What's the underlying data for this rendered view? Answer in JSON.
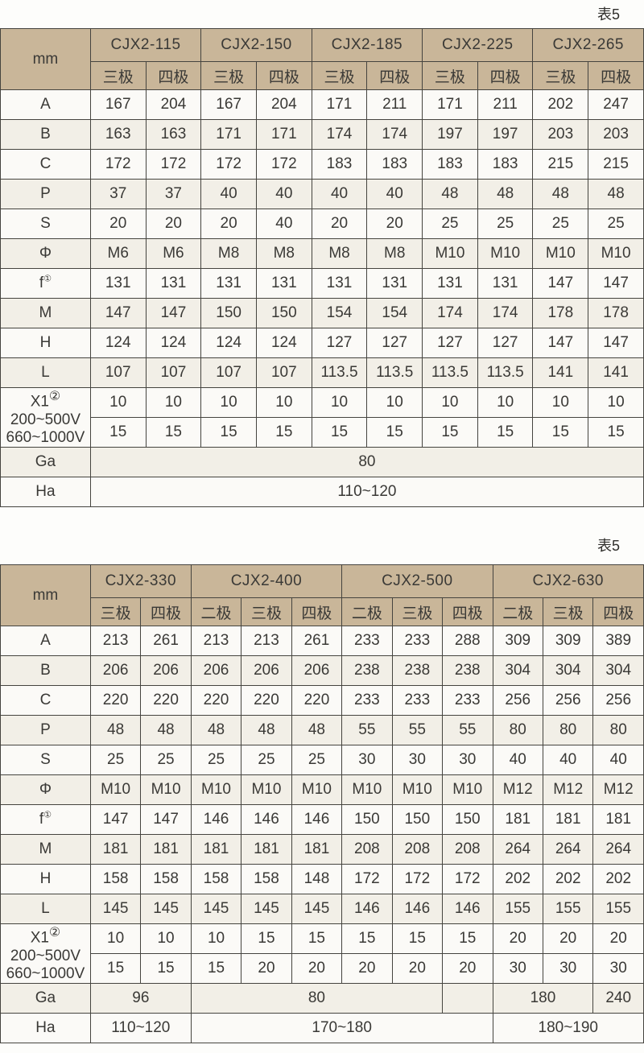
{
  "colors": {
    "header_bg": "#c9b699",
    "row_shaded": "#f2efe7",
    "row_plain": "#fbfaf7",
    "grid_dark": "#45443f",
    "grid_light": "#e6dfd0",
    "text": "#3a3936",
    "page_bg": "#fdfdfb"
  },
  "tables": [
    {
      "caption": "表5",
      "corner_label": "mm",
      "groups": [
        {
          "name": "CJX2-115",
          "poles": [
            "三极",
            "四极"
          ]
        },
        {
          "name": "CJX2-150",
          "poles": [
            "三极",
            "四极"
          ]
        },
        {
          "name": "CJX2-185",
          "poles": [
            "三极",
            "四极"
          ]
        },
        {
          "name": "CJX2-225",
          "poles": [
            "三极",
            "四极"
          ]
        },
        {
          "name": "CJX2-265",
          "poles": [
            "三极",
            "四极"
          ]
        }
      ],
      "rows": [
        {
          "label": "A",
          "values": [
            "167",
            "204",
            "167",
            "204",
            "171",
            "211",
            "171",
            "211",
            "202",
            "247"
          ]
        },
        {
          "label": "B",
          "values": [
            "163",
            "163",
            "171",
            "171",
            "174",
            "174",
            "197",
            "197",
            "203",
            "203"
          ]
        },
        {
          "label": "C",
          "values": [
            "172",
            "172",
            "172",
            "172",
            "183",
            "183",
            "183",
            "183",
            "215",
            "215"
          ]
        },
        {
          "label": "P",
          "values": [
            "37",
            "37",
            "40",
            "40",
            "40",
            "40",
            "48",
            "48",
            "48",
            "48"
          ]
        },
        {
          "label": "S",
          "values": [
            "20",
            "20",
            "20",
            "40",
            "20",
            "20",
            "25",
            "25",
            "25",
            "25"
          ]
        },
        {
          "label": "Φ",
          "values": [
            "M6",
            "M6",
            "M8",
            "M8",
            "M8",
            "M8",
            "M10",
            "M10",
            "M10",
            "M10"
          ]
        },
        {
          "label": "f①",
          "values": [
            "131",
            "131",
            "131",
            "131",
            "131",
            "131",
            "131",
            "131",
            "147",
            "147"
          ]
        },
        {
          "label": "M",
          "values": [
            "147",
            "147",
            "150",
            "150",
            "154",
            "154",
            "174",
            "174",
            "178",
            "178"
          ]
        },
        {
          "label": "H",
          "values": [
            "124",
            "124",
            "124",
            "124",
            "127",
            "127",
            "127",
            "127",
            "147",
            "147"
          ]
        },
        {
          "label": "L",
          "values": [
            "107",
            "107",
            "107",
            "107",
            "113.5",
            "113.5",
            "113.5",
            "113.5",
            "141",
            "141"
          ]
        }
      ],
      "x1_block": {
        "label_lines": [
          "X1②",
          "200~500V",
          "660~1000V"
        ],
        "rows": [
          [
            "10",
            "10",
            "10",
            "10",
            "10",
            "10",
            "10",
            "10",
            "10",
            "10"
          ],
          [
            "15",
            "15",
            "15",
            "15",
            "15",
            "15",
            "15",
            "15",
            "15",
            "15"
          ]
        ]
      },
      "footer_rows": [
        {
          "label": "Ga",
          "cells": [
            {
              "text": "80",
              "span": 10
            }
          ]
        },
        {
          "label": "Ha",
          "cells": [
            {
              "text": "110~120",
              "span": 10
            }
          ]
        }
      ]
    },
    {
      "caption": "表5",
      "corner_label": "mm",
      "groups": [
        {
          "name": "CJX2-330",
          "poles": [
            "三极",
            "四极"
          ]
        },
        {
          "name": "CJX2-400",
          "poles": [
            "二极",
            "三极",
            "四极"
          ]
        },
        {
          "name": "CJX2-500",
          "poles": [
            "二极",
            "三极",
            "四极"
          ]
        },
        {
          "name": "CJX2-630",
          "poles": [
            "二极",
            "三极",
            "四极"
          ]
        }
      ],
      "rows": [
        {
          "label": "A",
          "values": [
            "213",
            "261",
            "213",
            "213",
            "261",
            "233",
            "233",
            "288",
            "309",
            "309",
            "389"
          ]
        },
        {
          "label": "B",
          "values": [
            "206",
            "206",
            "206",
            "206",
            "206",
            "238",
            "238",
            "238",
            "304",
            "304",
            "304"
          ]
        },
        {
          "label": "C",
          "values": [
            "220",
            "220",
            "220",
            "220",
            "220",
            "233",
            "233",
            "233",
            "256",
            "256",
            "256"
          ]
        },
        {
          "label": "P",
          "values": [
            "48",
            "48",
            "48",
            "48",
            "48",
            "55",
            "55",
            "55",
            "80",
            "80",
            "80"
          ]
        },
        {
          "label": "S",
          "values": [
            "25",
            "25",
            "25",
            "25",
            "25",
            "30",
            "30",
            "30",
            "40",
            "40",
            "40"
          ]
        },
        {
          "label": "Φ",
          "values": [
            "M10",
            "M10",
            "M10",
            "M10",
            "M10",
            "M10",
            "M10",
            "M10",
            "M12",
            "M12",
            "M12"
          ]
        },
        {
          "label": "f①",
          "values": [
            "147",
            "147",
            "146",
            "146",
            "146",
            "150",
            "150",
            "150",
            "181",
            "181",
            "181"
          ]
        },
        {
          "label": "M",
          "values": [
            "181",
            "181",
            "181",
            "181",
            "181",
            "208",
            "208",
            "208",
            "264",
            "264",
            "264"
          ]
        },
        {
          "label": "H",
          "values": [
            "158",
            "158",
            "158",
            "158",
            "148",
            "172",
            "172",
            "172",
            "202",
            "202",
            "202"
          ]
        },
        {
          "label": "L",
          "values": [
            "145",
            "145",
            "145",
            "145",
            "145",
            "146",
            "146",
            "146",
            "155",
            "155",
            "155"
          ]
        }
      ],
      "x1_block": {
        "label_lines": [
          "X1②",
          "200~500V",
          "660~1000V"
        ],
        "rows": [
          [
            "10",
            "10",
            "10",
            "15",
            "15",
            "15",
            "15",
            "15",
            "20",
            "20",
            "20"
          ],
          [
            "15",
            "15",
            "15",
            "20",
            "20",
            "20",
            "20",
            "20",
            "30",
            "30",
            "30"
          ]
        ]
      },
      "footer_rows": [
        {
          "label": "Ga",
          "cells": [
            {
              "text": "96",
              "span": 2
            },
            {
              "text": "80",
              "span": 5
            },
            {
              "text": "",
              "span": 1
            },
            {
              "text": "180",
              "span": 2
            },
            {
              "text": "240",
              "span": 1
            }
          ]
        },
        {
          "label": "Ha",
          "cells": [
            {
              "text": "110~120",
              "span": 2
            },
            {
              "text": "170~180",
              "span": 6
            },
            {
              "text": "180~190",
              "span": 3
            }
          ]
        }
      ]
    }
  ]
}
